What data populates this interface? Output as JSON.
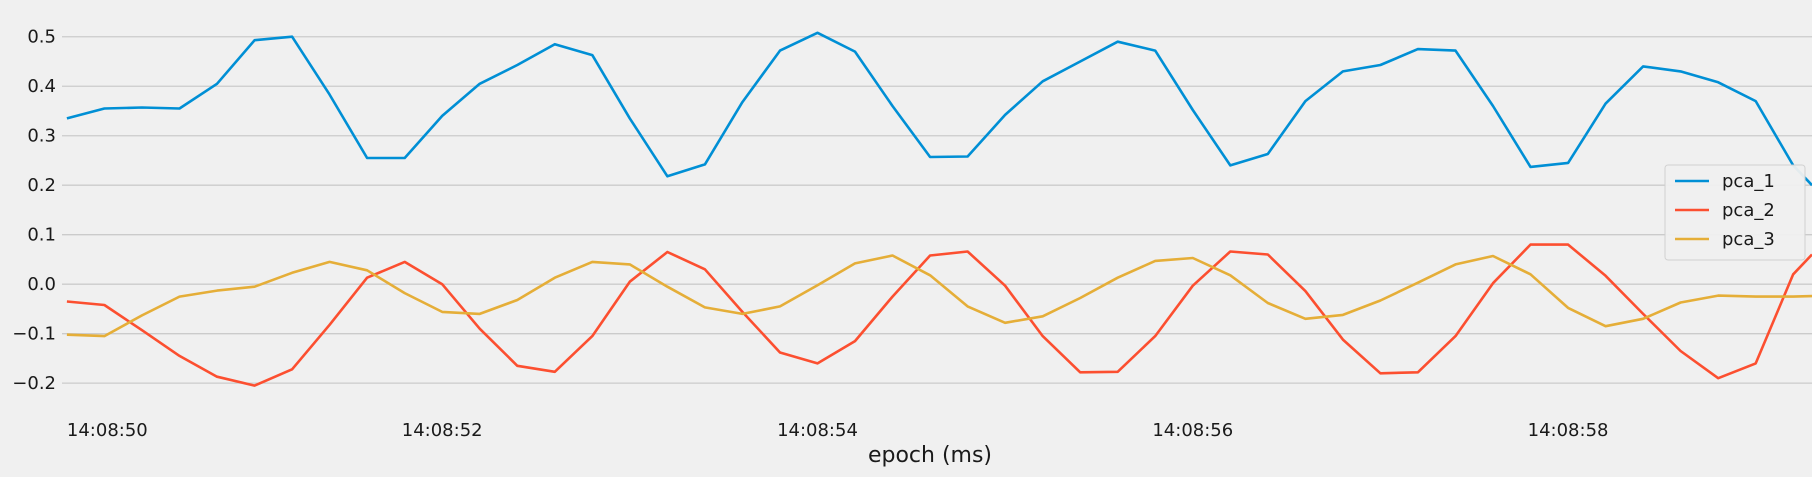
{
  "chart_data": {
    "type": "line",
    "title": "",
    "xlabel": "epoch (ms)",
    "ylabel": "",
    "x": [
      "14:08:50.0",
      "14:08:50.2",
      "14:08:50.4",
      "14:08:50.6",
      "14:08:50.8",
      "14:08:51.0",
      "14:08:51.2",
      "14:08:51.4",
      "14:08:51.6",
      "14:08:51.8",
      "14:08:52.0",
      "14:08:52.2",
      "14:08:52.4",
      "14:08:52.6",
      "14:08:52.8",
      "14:08:53.0",
      "14:08:53.2",
      "14:08:53.4",
      "14:08:53.6",
      "14:08:53.8",
      "14:08:54.0",
      "14:08:54.2",
      "14:08:54.4",
      "14:08:54.6",
      "14:08:54.8",
      "14:08:55.0",
      "14:08:55.2",
      "14:08:55.4",
      "14:08:55.6",
      "14:08:55.8",
      "14:08:56.0",
      "14:08:56.2",
      "14:08:56.4",
      "14:08:56.6",
      "14:08:56.8",
      "14:08:57.0",
      "14:08:57.2",
      "14:08:57.4",
      "14:08:57.6",
      "14:08:57.8",
      "14:08:58.0",
      "14:08:58.2",
      "14:08:58.4",
      "14:08:58.6",
      "14:08:58.8",
      "14:08:59.0",
      "14:08:59.2",
      "14:08:59.3"
    ],
    "xticks": [
      "14:08:50",
      "14:08:52",
      "14:08:54",
      "14:08:56",
      "14:08:58"
    ],
    "xtick_seconds": [
      0,
      2,
      4,
      6,
      8
    ],
    "xlim_seconds": [
      -0.25,
      9.3
    ],
    "ylim": [
      -0.23,
      0.55
    ],
    "yticks": [
      -0.2,
      -0.1,
      0.0,
      0.1,
      0.2,
      0.3,
      0.4,
      0.5
    ],
    "ytick_labels": [
      "−0.2",
      "−0.1",
      "0.0",
      "0.1",
      "0.2",
      "0.3",
      "0.4",
      "0.5"
    ],
    "grid": true,
    "legend_position": "right",
    "series": [
      {
        "name": "pca_1",
        "color": "#008fd5",
        "values": [
          0.335,
          0.355,
          0.357,
          0.355,
          0.405,
          0.493,
          0.5,
          0.383,
          0.255,
          0.255,
          0.34,
          0.405,
          0.443,
          0.485,
          0.463,
          0.335,
          0.218,
          0.242,
          0.368,
          0.472,
          0.508,
          0.47,
          0.36,
          0.257,
          0.258,
          0.342,
          0.41,
          0.45,
          0.49,
          0.472,
          0.352,
          0.24,
          0.263,
          0.37,
          0.43,
          0.443,
          0.475,
          0.472,
          0.36,
          0.237,
          0.245,
          0.365,
          0.44,
          0.43,
          0.408,
          0.37,
          0.24,
          0.2
        ]
      },
      {
        "name": "pca_2",
        "color": "#fc4f30",
        "values": [
          -0.035,
          -0.042,
          -0.093,
          -0.145,
          -0.187,
          -0.205,
          -0.172,
          -0.082,
          0.013,
          0.045,
          0.0,
          -0.09,
          -0.165,
          -0.177,
          -0.105,
          0.005,
          0.065,
          0.03,
          -0.056,
          -0.138,
          -0.16,
          -0.115,
          -0.025,
          0.058,
          0.066,
          -0.003,
          -0.105,
          -0.178,
          -0.177,
          -0.105,
          -0.003,
          0.066,
          0.06,
          -0.014,
          -0.112,
          -0.18,
          -0.178,
          -0.105,
          0.002,
          0.08,
          0.08,
          0.017,
          -0.06,
          -0.135,
          -0.19,
          -0.16,
          0.02,
          0.06
        ]
      },
      {
        "name": "pca_3",
        "color": "#e5ae38",
        "values": [
          -0.102,
          -0.105,
          -0.063,
          -0.025,
          -0.013,
          -0.005,
          0.023,
          0.045,
          0.028,
          -0.018,
          -0.056,
          -0.06,
          -0.032,
          0.013,
          0.045,
          0.04,
          -0.005,
          -0.047,
          -0.06,
          -0.045,
          -0.002,
          0.042,
          0.058,
          0.018,
          -0.045,
          -0.078,
          -0.065,
          -0.028,
          0.013,
          0.047,
          0.053,
          0.018,
          -0.038,
          -0.07,
          -0.062,
          -0.033,
          0.003,
          0.04,
          0.057,
          0.02,
          -0.048,
          -0.085,
          -0.07,
          -0.037,
          -0.023,
          -0.025,
          -0.025,
          -0.024
        ]
      }
    ]
  }
}
